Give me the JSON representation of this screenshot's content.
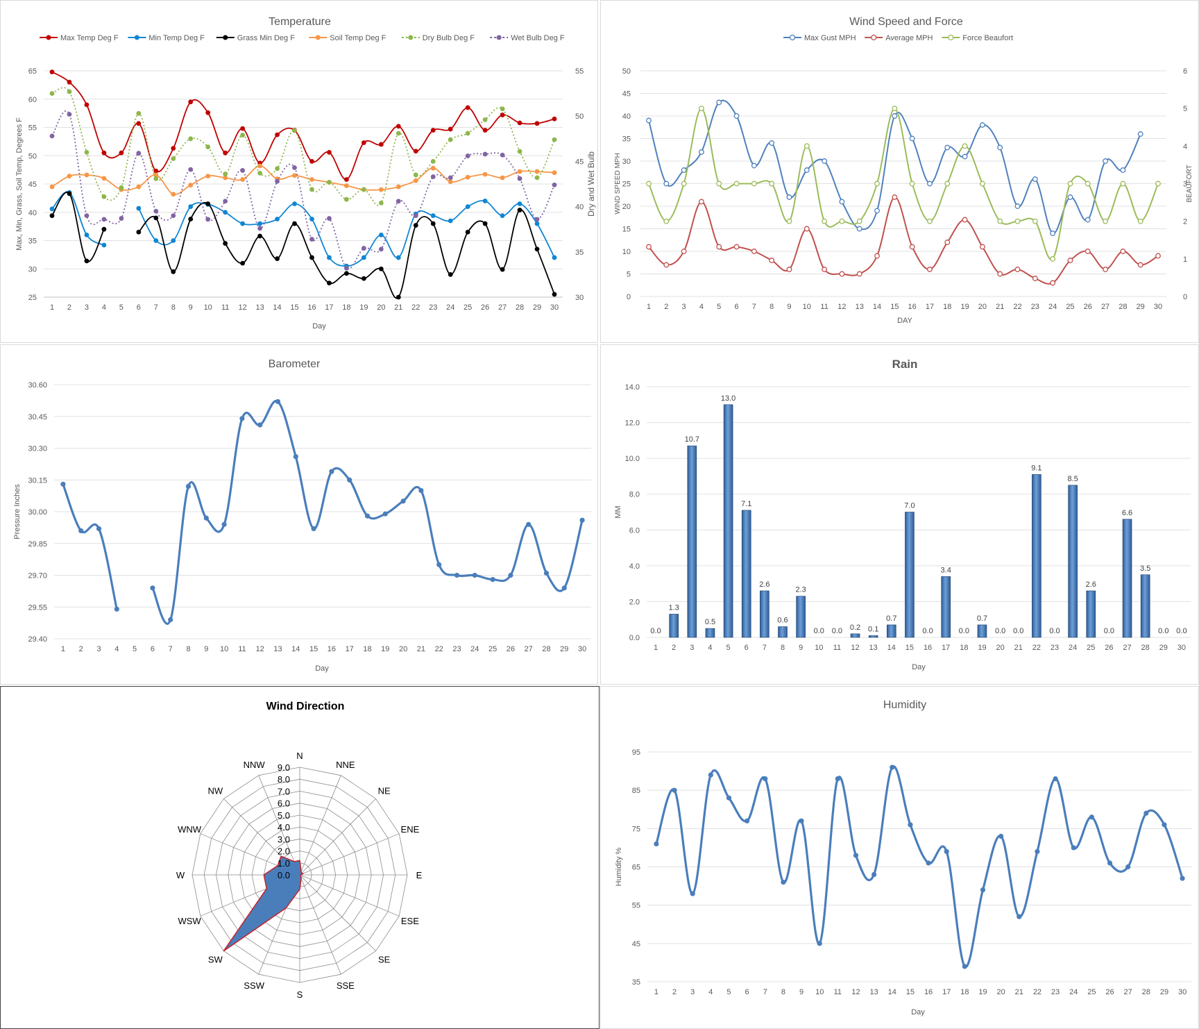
{
  "days": [
    1,
    2,
    3,
    4,
    5,
    6,
    7,
    8,
    9,
    10,
    11,
    12,
    13,
    14,
    15,
    16,
    17,
    18,
    19,
    20,
    21,
    22,
    23,
    24,
    25,
    26,
    27,
    28,
    29,
    30
  ],
  "charts": {
    "temperature": {
      "title": "Temperature",
      "xlabel": "Day",
      "ylabel_left": "Max, Min, Grass, Soil Temp, Degrees F",
      "ylabel_right": "Dry and Wet Bulb",
      "y_left": [
        25,
        65
      ],
      "y_left_ticks": [
        25,
        30,
        35,
        40,
        45,
        50,
        55,
        60,
        65
      ],
      "y_right": [
        30,
        55
      ],
      "y_right_ticks": [
        30,
        35,
        40,
        45,
        50,
        55
      ],
      "series": [
        {
          "name": "Max Temp Deg F",
          "color": "#c00000",
          "axis": "left",
          "dash": false,
          "values": [
            64.8,
            63,
            59,
            50.5,
            50.5,
            55.7,
            47.3,
            51.3,
            59.5,
            57.6,
            50.5,
            54.8,
            48.7,
            53.7,
            54.5,
            49,
            50.6,
            45.8,
            52.3,
            52,
            55.2,
            50.8,
            54.5,
            54.7,
            58.5,
            54.5,
            57.2,
            55.8,
            55.7,
            56.5
          ]
        },
        {
          "name": "Min Temp Deg F",
          "color": "#0f86d4",
          "axis": "left",
          "dash": false,
          "values": [
            40.6,
            43.5,
            36,
            34.2,
            null,
            40.7,
            35,
            35,
            41,
            41.4,
            40,
            38,
            38,
            38.8,
            41.5,
            38.8,
            32,
            30.5,
            32,
            36,
            32,
            39.7,
            39.4,
            38.5,
            41,
            42,
            39.4,
            41.5,
            38,
            32
          ]
        },
        {
          "name": "Grass Min Deg F",
          "color": "#000000",
          "axis": "left",
          "dash": false,
          "values": [
            39.4,
            43.3,
            31.4,
            37,
            null,
            36.5,
            39,
            29.5,
            38.8,
            41.5,
            34.5,
            31,
            35.8,
            31.8,
            38,
            32,
            27.5,
            29.2,
            28.3,
            30,
            25,
            37.7,
            38,
            29,
            36.5,
            38,
            29.9,
            40.4,
            33.5,
            25.5
          ]
        },
        {
          "name": "Soil Temp Deg F",
          "color": "#f79646",
          "axis": "left",
          "dash": false,
          "values": [
            44.5,
            46.4,
            46.6,
            46,
            44,
            44.5,
            46.6,
            43.2,
            44.8,
            46.4,
            46.1,
            45.8,
            48.2,
            45.9,
            46.5,
            45.8,
            45.3,
            44.7,
            44,
            44,
            44.5,
            45.6,
            47.8,
            45.4,
            46.2,
            46.7,
            46.1,
            47.2,
            47.2,
            47
          ]
        },
        {
          "name": "Dry Bulb Deg F",
          "color": "#8db64c",
          "axis": "right",
          "dash": true,
          "values": [
            52.5,
            52.7,
            46,
            41.1,
            42.1,
            50.3,
            43.1,
            45.3,
            47.5,
            46.6,
            43.6,
            47.9,
            43.7,
            44.2,
            48.4,
            41.9,
            42.7,
            40.8,
            41.9,
            40.4,
            48.1,
            43.5,
            45,
            47.4,
            48.1,
            49.6,
            50.8,
            46.1,
            43.2,
            47.4
          ]
        },
        {
          "name": "Wet Bulb Deg F",
          "color": "#8064a2",
          "axis": "right",
          "dash": true,
          "values": [
            47.8,
            50.2,
            39,
            38.6,
            38.7,
            45.9,
            39.5,
            39,
            44.1,
            38.6,
            40.6,
            44,
            37.6,
            42.8,
            44.3,
            36.4,
            38.7,
            33.2,
            35.4,
            35.3,
            40.6,
            39,
            43.3,
            43.2,
            45.6,
            45.8,
            45.7,
            43.1,
            38.6,
            42.4
          ]
        }
      ]
    },
    "wind": {
      "title": "Wind Speed and Force",
      "xlabel": "DAY",
      "ylabel_left": "WIND SPEED MPH",
      "ylabel_right": "BEAUFORT",
      "y_left": [
        0,
        50
      ],
      "y_left_ticks": [
        0,
        5,
        10,
        15,
        20,
        25,
        30,
        35,
        40,
        45,
        50
      ],
      "y_right": [
        0,
        6
      ],
      "y_right_ticks": [
        0,
        1,
        2,
        3,
        4,
        5,
        6
      ],
      "series": [
        {
          "name": "Max Gust MPH",
          "color": "#4f81bd",
          "axis": "left",
          "values": [
            39,
            25,
            28,
            32,
            43,
            40,
            29,
            34,
            22,
            28,
            30,
            21,
            15,
            19,
            40,
            35,
            25,
            33,
            31,
            38,
            33,
            20,
            26,
            14,
            22,
            17,
            30,
            28,
            36,
            null
          ]
        },
        {
          "name": "Average MPH",
          "color": "#c0504d",
          "axis": "left",
          "values": [
            11,
            7,
            10,
            21,
            11,
            11,
            10,
            8,
            6,
            15,
            6,
            5,
            5,
            9,
            22,
            11,
            6,
            12,
            17,
            11,
            5,
            6,
            4,
            3,
            8,
            10,
            6,
            10,
            7,
            9
          ]
        },
        {
          "name": "Force Beaufort",
          "color": "#9bbb59",
          "axis": "right",
          "values": [
            3,
            2,
            3,
            5,
            3,
            3,
            3,
            3,
            2,
            4,
            2,
            2,
            2,
            3,
            5,
            3,
            2,
            3,
            4,
            3,
            2,
            2,
            2,
            1,
            3,
            3,
            2,
            3,
            2,
            3
          ]
        }
      ]
    },
    "barometer": {
      "title": "Barometer",
      "xlabel": "Day",
      "ylabel": "Pressure Inches",
      "ylim": [
        29.4,
        30.6
      ],
      "yticks": [
        "29.40",
        "29.55",
        "29.70",
        "29.85",
        "30.00",
        "30.15",
        "30.30",
        "30.45",
        "30.60"
      ],
      "color": "#4a7ebb",
      "values": [
        30.13,
        29.91,
        29.92,
        29.54,
        null,
        29.64,
        29.49,
        30.12,
        29.97,
        29.94,
        30.44,
        30.41,
        30.52,
        30.26,
        29.92,
        30.19,
        30.15,
        29.98,
        29.99,
        30.05,
        30.1,
        29.75,
        29.7,
        29.7,
        29.68,
        29.7,
        29.94,
        29.71,
        29.64,
        29.96
      ]
    },
    "rain": {
      "title": "Rain",
      "xlabel": "Day",
      "ylabel": "MM",
      "ylim": [
        0,
        14
      ],
      "yticks": [
        "0.0",
        "2.0",
        "4.0",
        "6.0",
        "8.0",
        "10.0",
        "12.0",
        "14.0"
      ],
      "color": "#4a7ebb",
      "values": [
        0.0,
        1.3,
        10.7,
        0.5,
        13.0,
        7.1,
        2.6,
        0.6,
        2.3,
        0.0,
        0.0,
        0.2,
        0.1,
        0.7,
        7.0,
        0.0,
        3.4,
        0.0,
        0.7,
        0.0,
        0.0,
        9.1,
        0.0,
        8.5,
        2.6,
        0.0,
        6.6,
        3.5,
        0.0,
        0.0
      ],
      "labels": [
        "0.0",
        "1.3",
        "10.7",
        "0.5",
        "13.0",
        "7.1",
        "2.6",
        "0.6",
        "2.3",
        "0.0",
        "0.0",
        "0.2",
        "0.1",
        "0.7",
        "7.0",
        "0.0",
        "3.4",
        "0.0",
        "0.7",
        "0.0",
        "0.0",
        "9.1",
        "0.0",
        "8.5",
        "2.6",
        "0.0",
        "6.6",
        "3.5",
        "0.0",
        "0.0"
      ]
    },
    "wind_direction": {
      "title": "Wind Direction",
      "directions": [
        "N",
        "NNE",
        "NE",
        "ENE",
        "E",
        "ESE",
        "SE",
        "SSE",
        "S",
        "SSW",
        "SW",
        "WSW",
        "W",
        "WNW",
        "NW",
        "NNW"
      ],
      "values": [
        1.2,
        0.3,
        0.2,
        0.3,
        0.1,
        0.1,
        0.1,
        0.3,
        1.2,
        3.0,
        9.0,
        3.0,
        3.0,
        2.0,
        2.2,
        1.2
      ],
      "rmax": 9.0,
      "rticks": [
        "0.0",
        "1.0",
        "2.0",
        "3.0",
        "4.0",
        "5.0",
        "6.0",
        "7.0",
        "8.0",
        "9.0"
      ],
      "fill": "#4a7ebb",
      "stroke": "#c0262e"
    },
    "humidity": {
      "title": "Humidity",
      "xlabel": "Day",
      "ylabel": "Humidity %",
      "ylim": [
        35,
        95
      ],
      "yticks": [
        "35",
        "45",
        "55",
        "65",
        "75",
        "85",
        "95"
      ],
      "color": "#4a7ebb",
      "values": [
        71,
        85,
        58,
        89,
        83,
        77,
        88,
        61,
        77,
        45,
        88,
        68,
        63,
        91,
        76,
        66,
        69,
        39,
        59,
        73,
        52,
        69,
        88,
        70,
        78,
        66,
        65,
        79,
        76,
        62
      ]
    }
  }
}
